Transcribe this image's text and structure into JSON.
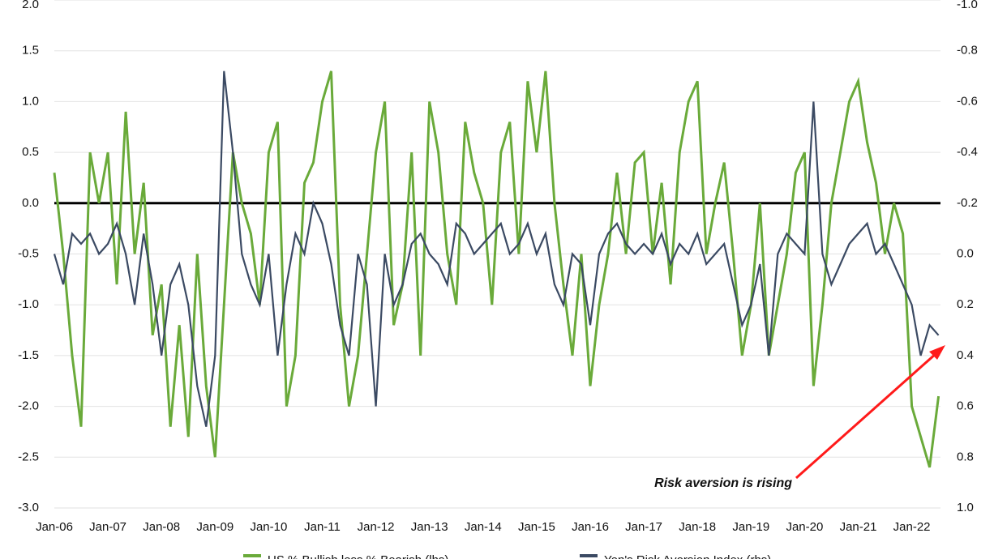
{
  "chart_data": {
    "type": "line",
    "x": [
      "Jan-06",
      "Mar-06",
      "May-06",
      "Jul-06",
      "Sep-06",
      "Nov-06",
      "Jan-07",
      "Mar-07",
      "May-07",
      "Jul-07",
      "Sep-07",
      "Nov-07",
      "Jan-08",
      "Mar-08",
      "May-08",
      "Jul-08",
      "Sep-08",
      "Nov-08",
      "Jan-09",
      "Mar-09",
      "May-09",
      "Jul-09",
      "Sep-09",
      "Nov-09",
      "Jan-10",
      "Mar-10",
      "May-10",
      "Jul-10",
      "Sep-10",
      "Nov-10",
      "Jan-11",
      "Mar-11",
      "May-11",
      "Jul-11",
      "Sep-11",
      "Nov-11",
      "Jan-12",
      "Mar-12",
      "May-12",
      "Jul-12",
      "Sep-12",
      "Nov-12",
      "Jan-13",
      "Mar-13",
      "May-13",
      "Jul-13",
      "Sep-13",
      "Nov-13",
      "Jan-14",
      "Mar-14",
      "May-14",
      "Jul-14",
      "Sep-14",
      "Nov-14",
      "Jan-15",
      "Mar-15",
      "May-15",
      "Jul-15",
      "Sep-15",
      "Nov-15",
      "Jan-16",
      "Mar-16",
      "May-16",
      "Jul-16",
      "Sep-16",
      "Nov-16",
      "Jan-17",
      "Mar-17",
      "May-17",
      "Jul-17",
      "Sep-17",
      "Nov-17",
      "Jan-18",
      "Mar-18",
      "May-18",
      "Jul-18",
      "Sep-18",
      "Nov-18",
      "Jan-19",
      "Mar-19",
      "May-19",
      "Jul-19",
      "Sep-19",
      "Nov-19",
      "Jan-20",
      "Mar-20",
      "May-20",
      "Jul-20",
      "Sep-20",
      "Nov-20",
      "Jan-21",
      "Mar-21",
      "May-21",
      "Jul-21",
      "Sep-21",
      "Nov-21",
      "Jan-22",
      "Mar-22",
      "May-22",
      "Jul-22"
    ],
    "xticks": [
      "Jan-06",
      "Jan-07",
      "Jan-08",
      "Jan-09",
      "Jan-10",
      "Jan-11",
      "Jan-12",
      "Jan-13",
      "Jan-14",
      "Jan-15",
      "Jan-16",
      "Jan-17",
      "Jan-18",
      "Jan-19",
      "Jan-20",
      "Jan-21",
      "Jan-22"
    ],
    "series": [
      {
        "name": "US % Bullish less % Bearish (lhs)",
        "color": "#6aaa3a",
        "values": [
          0.3,
          -0.5,
          -1.5,
          -2.2,
          0.5,
          0.0,
          0.5,
          -0.8,
          0.9,
          -0.5,
          0.2,
          -1.3,
          -0.8,
          -2.2,
          -1.2,
          -2.3,
          -0.5,
          -1.8,
          -2.5,
          -1.0,
          0.5,
          0.0,
          -0.3,
          -1.0,
          0.5,
          0.8,
          -2.0,
          -1.5,
          0.2,
          0.4,
          1.0,
          1.3,
          -1.0,
          -2.0,
          -1.5,
          -0.5,
          0.5,
          1.0,
          -1.2,
          -0.8,
          0.5,
          -1.5,
          1.0,
          0.5,
          -0.5,
          -1.0,
          0.8,
          0.3,
          0.0,
          -1.0,
          0.5,
          0.8,
          -0.5,
          1.2,
          0.5,
          1.3,
          0.0,
          -0.8,
          -1.5,
          -0.5,
          -1.8,
          -1.0,
          -0.5,
          0.3,
          -0.5,
          0.4,
          0.5,
          -0.5,
          0.2,
          -0.8,
          0.5,
          1.0,
          1.2,
          -0.5,
          0.0,
          0.4,
          -0.5,
          -1.5,
          -1.0,
          0.0,
          -1.5,
          -1.0,
          -0.5,
          0.3,
          0.5,
          -1.8,
          -1.0,
          0.0,
          0.5,
          1.0,
          1.2,
          0.6,
          0.2,
          -0.5,
          0.0,
          -0.3,
          -2.0,
          -2.3,
          -2.6,
          -1.9
        ]
      },
      {
        "name": "Yen's Risk Aversion Index (rhs)",
        "color": "#3b4a63",
        "axis": "y2",
        "values": [
          0.0,
          0.12,
          -0.08,
          -0.04,
          -0.08,
          0.0,
          -0.04,
          -0.12,
          0.0,
          0.2,
          -0.08,
          0.12,
          0.4,
          0.12,
          0.04,
          0.2,
          0.52,
          0.68,
          0.4,
          -0.72,
          -0.4,
          0.0,
          0.12,
          0.2,
          0.0,
          0.4,
          0.12,
          -0.08,
          0.0,
          -0.2,
          -0.12,
          0.04,
          0.28,
          0.4,
          0.0,
          0.12,
          0.6,
          0.0,
          0.2,
          0.12,
          -0.04,
          -0.08,
          0.0,
          0.04,
          0.12,
          -0.12,
          -0.08,
          0.0,
          -0.04,
          -0.08,
          -0.12,
          0.0,
          -0.04,
          -0.12,
          0.0,
          -0.08,
          0.12,
          0.2,
          0.0,
          0.04,
          0.28,
          0.0,
          -0.08,
          -0.12,
          -0.04,
          0.0,
          -0.04,
          0.0,
          -0.08,
          0.04,
          -0.04,
          0.0,
          -0.08,
          0.04,
          0.0,
          -0.04,
          0.12,
          0.28,
          0.2,
          0.04,
          0.4,
          0.0,
          -0.08,
          -0.04,
          0.0,
          -0.6,
          0.0,
          0.12,
          0.04,
          -0.04,
          -0.08,
          -0.12,
          0.0,
          -0.04,
          0.04,
          0.12,
          0.2,
          0.4,
          0.28,
          0.32
        ]
      }
    ],
    "ylim": [
      -3,
      2
    ],
    "yticks": [
      {
        "value": 2,
        "label": "2.0"
      },
      1.5,
      {
        "value": 1,
        "label": "1.0"
      },
      0.5,
      {
        "value": 0,
        "label": "0.0"
      },
      -0.5,
      {
        "value": -1,
        "label": "-1.0"
      },
      -1.5,
      {
        "value": -2,
        "label": "-2.0"
      },
      -2.5,
      {
        "value": -3,
        "label": "-3.0"
      }
    ],
    "y2lim": [
      1,
      -1
    ],
    "y2ticks": [
      {
        "value": -1,
        "label": "-1.0"
      },
      -0.8,
      -0.6,
      -0.4,
      -0.2,
      {
        "value": 0,
        "label": "0.0"
      },
      0.2,
      0.4,
      0.6,
      0.8,
      {
        "value": 1,
        "label": "1.0"
      }
    ],
    "grid": true,
    "annotation": "Risk aversion is rising"
  }
}
